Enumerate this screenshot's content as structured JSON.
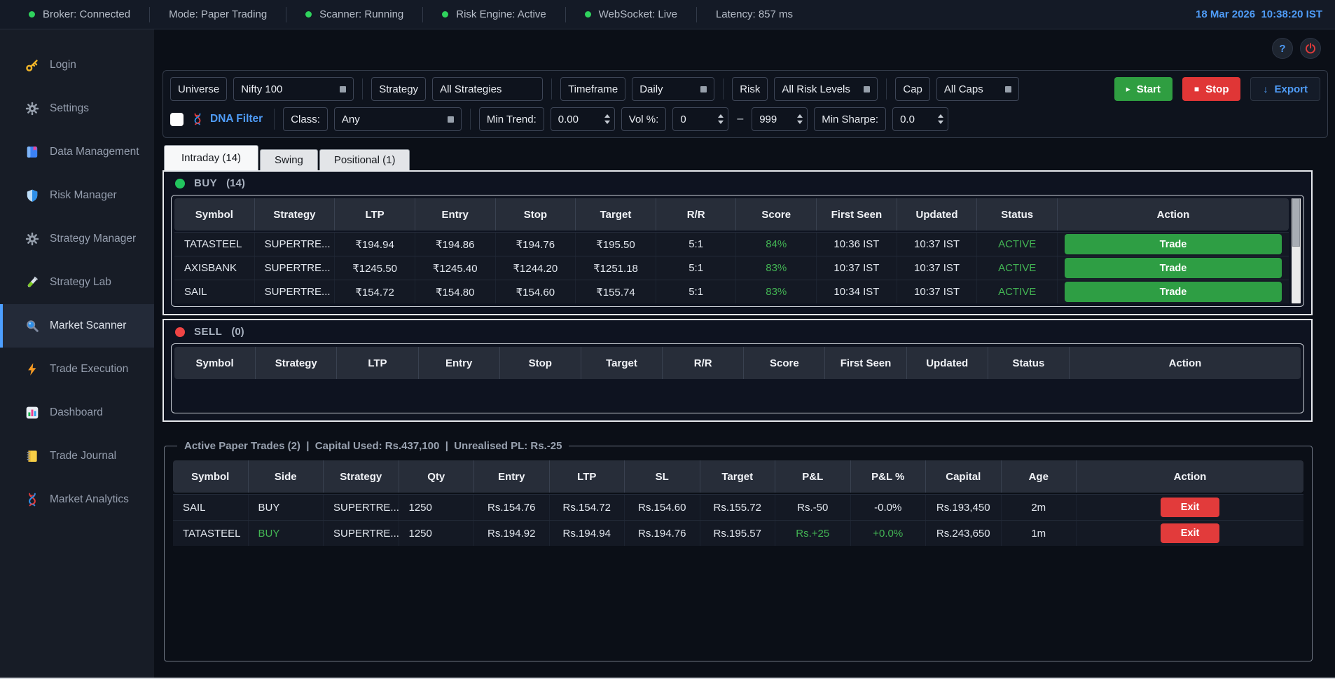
{
  "colors": {
    "accent_blue": "#4f9cf7",
    "positive_green": "#43b554",
    "negative_red": "#e23b3b",
    "start_green": "#2f9e41",
    "buy_dot": "#22c55e",
    "sell_dot": "#ef4444"
  },
  "statusbar": {
    "items": [
      {
        "label": "Broker: Connected",
        "dot": true
      },
      {
        "label": "Mode: Paper Trading",
        "dot": false
      },
      {
        "label": "Scanner: Running",
        "dot": true
      },
      {
        "label": "Risk Engine: Active",
        "dot": true
      },
      {
        "label": "WebSocket: Live",
        "dot": true
      },
      {
        "label": "Latency: 857 ms",
        "dot": false
      }
    ],
    "datetime": "18 Mar 2026  10:38:20 IST"
  },
  "titlebar_buttons": {
    "help_label": "?"
  },
  "sidebar": {
    "items": [
      {
        "icon": "key-icon",
        "label": "Login",
        "active": false
      },
      {
        "icon": "gear-icon",
        "label": "Settings",
        "active": false
      },
      {
        "icon": "book-icon",
        "label": "Data Management",
        "active": false
      },
      {
        "icon": "shield-icon",
        "label": "Risk Manager",
        "active": false
      },
      {
        "icon": "gear-icon",
        "label": "Strategy Manager",
        "active": false
      },
      {
        "icon": "test-tube-icon",
        "label": "Strategy Lab",
        "active": false
      },
      {
        "icon": "magnifier-icon",
        "label": "Market Scanner",
        "active": true
      },
      {
        "icon": "lightning-icon",
        "label": "Trade Execution",
        "active": false
      },
      {
        "icon": "bar-chart-icon",
        "label": "Dashboard",
        "active": false
      },
      {
        "icon": "notebook-icon",
        "label": "Trade Journal",
        "active": false
      },
      {
        "icon": "dna-icon",
        "label": "Market Analytics",
        "active": false
      }
    ]
  },
  "toolbar": {
    "groups": [
      {
        "label": "Universe",
        "value": "Nifty 100",
        "arrow": true
      },
      {
        "label": "Strategy",
        "value": "All Strategies",
        "arrow": false
      },
      {
        "label": "Timeframe",
        "value": "Daily",
        "arrow": true
      },
      {
        "label": "Risk",
        "value": "All Risk Levels",
        "arrow": true
      },
      {
        "label": "Cap",
        "value": "All Caps",
        "arrow": true
      }
    ],
    "start_icon": "▸",
    "start_label": "Start",
    "stop_icon": "■",
    "stop_label": "Stop",
    "export_icon": "↓",
    "export_label": "Export"
  },
  "filters": {
    "dna_label": "DNA Filter",
    "class_label": "Class:",
    "class_value": "Any",
    "min_trend_label": "Min Trend:",
    "min_trend_value": "0.00",
    "vol_label": "Vol %:",
    "vol_min": "0",
    "range_dash": "–",
    "vol_max": "999",
    "min_sharpe_label": "Min Sharpe:",
    "min_sharpe_value": "0.0"
  },
  "tabs": [
    {
      "label": "Intraday (14)",
      "active": true
    },
    {
      "label": "Swing",
      "active": false
    },
    {
      "label": "Positional (1)",
      "active": false
    }
  ],
  "buy_section": {
    "title": "BUY",
    "count": "(14)",
    "dot_color": "#22c55e",
    "headers": [
      "Symbol",
      "Strategy",
      "LTP",
      "Entry",
      "Stop",
      "Target",
      "R/R",
      "Score",
      "First Seen",
      "Updated",
      "Status",
      "Action"
    ],
    "rows": [
      [
        "TATASTEEL",
        "SUPERTRE...",
        "₹194.94",
        "₹194.86",
        "₹194.76",
        "₹195.50",
        "5:1",
        {
          "t": "84%",
          "c": "g"
        },
        "10:36 IST",
        "10:37 IST",
        {
          "t": "ACTIVE",
          "c": "g"
        },
        {
          "t": "Trade",
          "btn": true
        }
      ],
      [
        "AXISBANK",
        "SUPERTRE...",
        "₹1245.50",
        "₹1245.40",
        "₹1244.20",
        "₹1251.18",
        "5:1",
        {
          "t": "83%",
          "c": "g"
        },
        "10:37 IST",
        "10:37 IST",
        {
          "t": "ACTIVE",
          "c": "g"
        },
        {
          "t": "Trade",
          "btn": true
        }
      ],
      [
        "SAIL",
        "SUPERTRE...",
        "₹154.72",
        "₹154.80",
        "₹154.60",
        "₹155.74",
        "5:1",
        {
          "t": "83%",
          "c": "g"
        },
        "10:34 IST",
        "10:37 IST",
        {
          "t": "ACTIVE",
          "c": "g"
        },
        {
          "t": "Trade",
          "btn": true
        }
      ]
    ]
  },
  "sell_section": {
    "title": "SELL",
    "count": "(0)",
    "dot_color": "#ef4444",
    "headers": [
      "Symbol",
      "Strategy",
      "LTP",
      "Entry",
      "Stop",
      "Target",
      "R/R",
      "Score",
      "First Seen",
      "Updated",
      "Status",
      "Action"
    ],
    "rows": []
  },
  "paper_trades": {
    "legend": "Active Paper Trades (2)  |  Capital Used: Rs.437,100  |  Unrealised PL: Rs.-25",
    "headers": [
      "Symbol",
      "Side",
      "Strategy",
      "Qty",
      "Entry",
      "LTP",
      "SL",
      "Target",
      "P&L",
      "P&L %",
      "Capital",
      "Age",
      "Action"
    ],
    "rows": [
      [
        "SAIL",
        "BUY",
        "SUPERTRE...",
        "1250",
        "Rs.154.76",
        "Rs.154.72",
        "Rs.154.60",
        "Rs.155.72",
        "Rs.-50",
        "-0.0%",
        "Rs.193,450",
        "2m",
        {
          "t": "Exit",
          "btn": true
        }
      ],
      [
        "TATASTEEL",
        {
          "t": "BUY",
          "c": "g"
        },
        "SUPERTRE...",
        "1250",
        "Rs.194.92",
        "Rs.194.94",
        "Rs.194.76",
        "Rs.195.57",
        {
          "t": "Rs.+25",
          "c": "g"
        },
        {
          "t": "+0.0%",
          "c": "g"
        },
        "Rs.243,650",
        "1m",
        {
          "t": "Exit",
          "btn": true
        }
      ]
    ]
  }
}
